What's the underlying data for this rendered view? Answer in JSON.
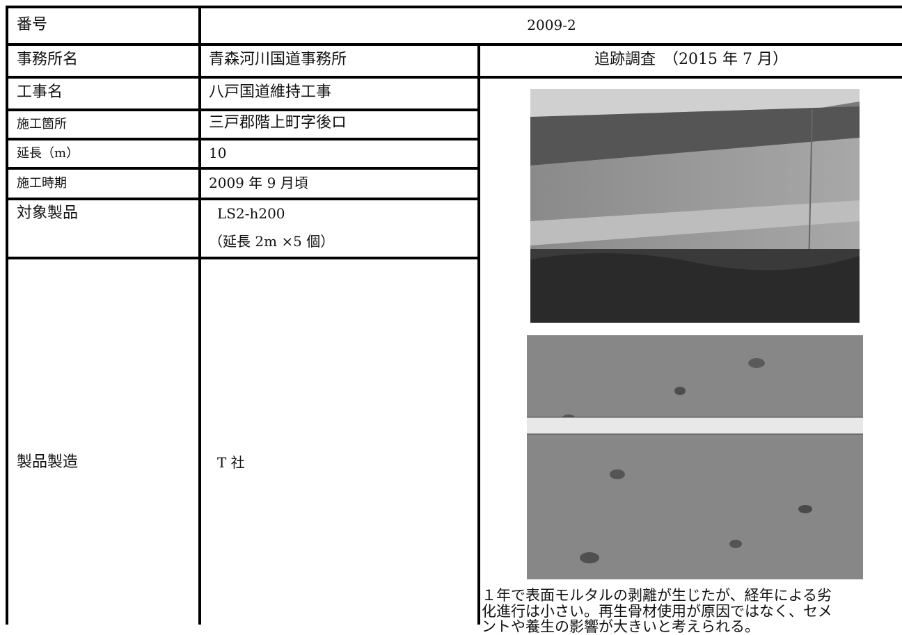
{
  "table": {
    "rows": [
      {
        "label": "番号",
        "value": "2009-2"
      },
      {
        "label": "事務所名",
        "value": "青森河川国道事務所"
      },
      {
        "label": "工事名",
        "value": "八戸国道維持工事"
      },
      {
        "label": "施工箇所",
        "value": "三戸郡階上町字後ロ"
      },
      {
        "label": "延長（m）",
        "value": "10"
      },
      {
        "label": "施工時期",
        "value": "2009 年 9 月頃"
      },
      {
        "label": "対象製品",
        "value": [
          "LS2-h200",
          "（延長  2m  ×5 個）"
        ]
      },
      {
        "label": "製品製造",
        "value": "T 社"
      }
    ]
  },
  "survey": {
    "title": "追跡調査　（2015 年 7 月）",
    "caption": [
      "１年で表面モルタルの剥離が生じたが、経年による劣",
      "化進行は小さい。再生骨材使用が原因ではなく、セメ",
      "ントや養生の影響が大きいと考えられる。"
    ]
  }
}
